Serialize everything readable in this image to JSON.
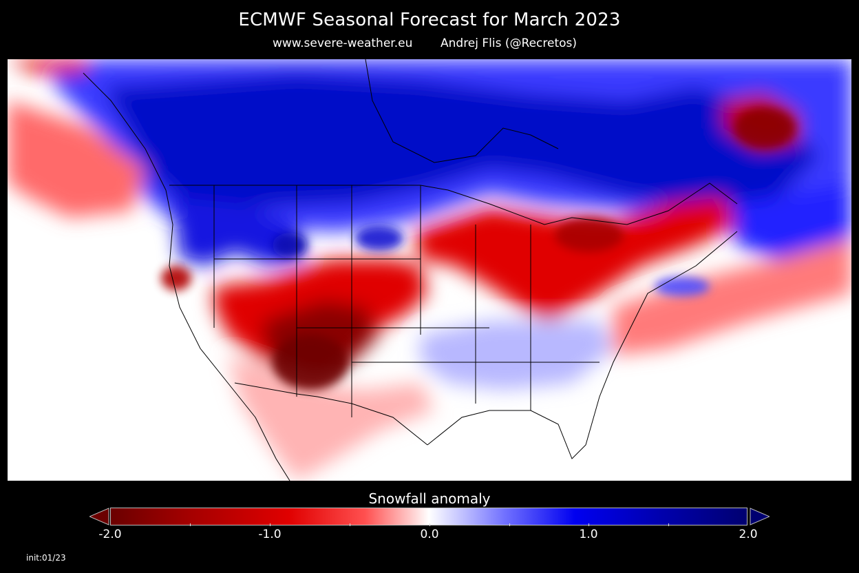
{
  "header": {
    "title": "ECMWF Seasonal Forecast for March 2023",
    "site": "www.severe-weather.eu",
    "author": "Andrej Flis (@Recretos)"
  },
  "map": {
    "region": "North America",
    "variable": "Snowfall anomaly",
    "colors": {
      "dark_red": "#7a0000",
      "red": "#e60000",
      "light_red": "#ffb4b4",
      "white": "#ffffff",
      "light_blue": "#c8c8ff",
      "blue": "#1010ff",
      "dark_blue": "#00008c",
      "boundary": "#000000"
    }
  },
  "legend": {
    "title": "Snowfall anomaly",
    "min": -2.0,
    "max": 2.0,
    "labels": [
      "-2.0",
      "-1.0",
      "0.0",
      "1.0",
      "2.0"
    ],
    "low_color": "#6b0000",
    "high_color": "#000070",
    "extend": "both"
  },
  "footer": {
    "init": "init:01/23"
  }
}
